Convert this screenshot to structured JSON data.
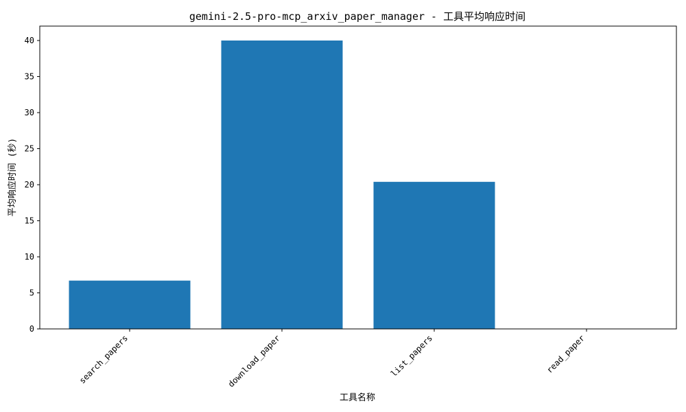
{
  "chart_data": {
    "type": "bar",
    "title": "gemini-2.5-pro-mcp_arxiv_paper_manager - 工具平均响应时间",
    "xlabel": "工具名称",
    "ylabel": "平均响应时间 (秒)",
    "categories": [
      "search_papers",
      "download_paper",
      "list_papers",
      "read_paper"
    ],
    "values": [
      6.7,
      40.0,
      20.4,
      0.0
    ],
    "ylim": [
      0,
      42
    ],
    "yticks": [
      0,
      5,
      10,
      15,
      20,
      25,
      30,
      35,
      40
    ],
    "bar_color": "#1f77b4",
    "grid": false
  }
}
